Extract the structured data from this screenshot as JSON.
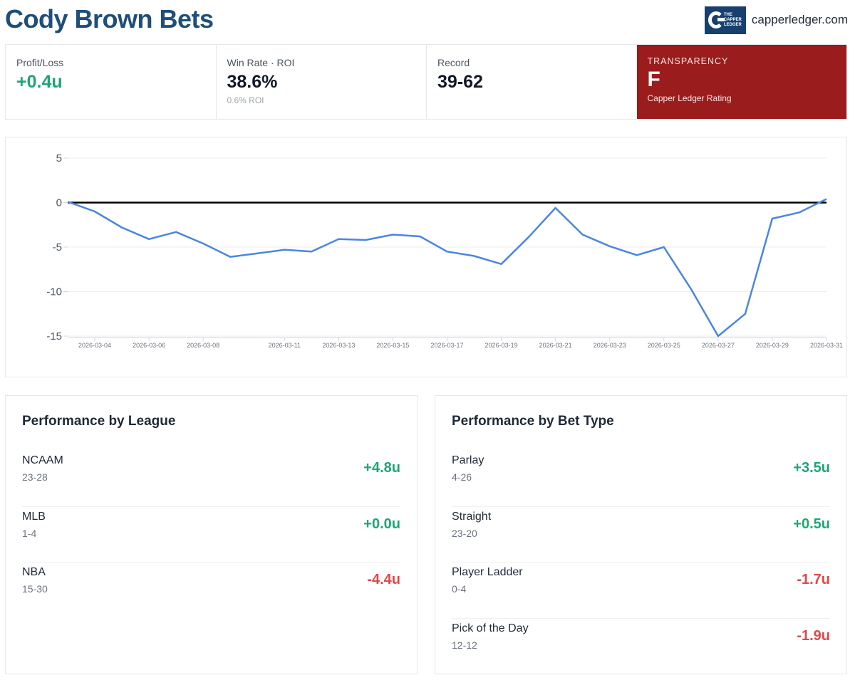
{
  "header": {
    "title": "Cody Brown Bets",
    "brand_logo_text": "THE CAPPER LEDGER",
    "brand_domain": "capperledger.com"
  },
  "stats": {
    "profit_loss": {
      "label": "Profit/Loss",
      "value": "+0.4u"
    },
    "win_rate": {
      "label": "Win Rate · ROI",
      "value": "38.6%",
      "sub": "0.6% ROI"
    },
    "record": {
      "label": "Record",
      "value": "39-62"
    },
    "transparency": {
      "label": "TRANSPARENCY",
      "grade": "F",
      "sub": "Capper Ledger Rating"
    }
  },
  "colors": {
    "title": "#1f4e79",
    "positive": "#1ea672",
    "negative": "#e04848",
    "transparency_bg": "#9b1c1c",
    "line": "#4a86e0",
    "zero_line": "#000000"
  },
  "chart_data": {
    "type": "line",
    "title": "",
    "xlabel": "",
    "ylabel": "",
    "ylim": [
      -15,
      5
    ],
    "yticks": [
      5,
      0,
      -5,
      -10,
      -15
    ],
    "grid": true,
    "x_tick_labels": [
      "2026-03-04",
      "2026-03-06",
      "2026-03-08",
      "2026-03-11",
      "2026-03-13",
      "2026-03-15",
      "2026-03-17",
      "2026-03-19",
      "2026-03-21",
      "2026-03-23",
      "2026-03-25",
      "2026-03-27",
      "2026-03-29",
      "2026-03-31"
    ],
    "reference_line": 0,
    "series": [
      {
        "points": [
          [
            "2026-03-03",
            0.1
          ],
          [
            "2026-03-04",
            -1.0
          ],
          [
            "2026-03-05",
            -2.8
          ],
          [
            "2026-03-06",
            -4.1
          ],
          [
            "2026-03-07",
            -3.3
          ],
          [
            "2026-03-08",
            -4.6
          ],
          [
            "2026-03-09",
            -6.1
          ],
          [
            "2026-03-11",
            -5.3
          ],
          [
            "2026-03-12",
            -5.5
          ],
          [
            "2026-03-13",
            -4.1
          ],
          [
            "2026-03-14",
            -4.2
          ],
          [
            "2026-03-15",
            -3.6
          ],
          [
            "2026-03-16",
            -3.8
          ],
          [
            "2026-03-17",
            -5.5
          ],
          [
            "2026-03-18",
            -6.0
          ],
          [
            "2026-03-19",
            -6.9
          ],
          [
            "2026-03-20",
            -3.9
          ],
          [
            "2026-03-21",
            -0.6
          ],
          [
            "2026-03-22",
            -3.6
          ],
          [
            "2026-03-23",
            -4.9
          ],
          [
            "2026-03-24",
            -5.9
          ],
          [
            "2026-03-25",
            -5.0
          ],
          [
            "2026-03-26",
            -9.7
          ],
          [
            "2026-03-27",
            -15.0
          ],
          [
            "2026-03-28",
            -12.5
          ],
          [
            "2026-03-29",
            -1.8
          ],
          [
            "2026-03-30",
            -1.1
          ],
          [
            "2026-03-31",
            0.4
          ]
        ]
      }
    ]
  },
  "perf_league": {
    "title": "Performance by League",
    "rows": [
      {
        "name": "NCAAM",
        "record": "23-28",
        "value": "+4.8u",
        "sign": "pos"
      },
      {
        "name": "MLB",
        "record": "1-4",
        "value": "+0.0u",
        "sign": "pos"
      },
      {
        "name": "NBA",
        "record": "15-30",
        "value": "-4.4u",
        "sign": "neg"
      }
    ]
  },
  "perf_bettype": {
    "title": "Performance by Bet Type",
    "rows": [
      {
        "name": "Parlay",
        "record": "4-26",
        "value": "+3.5u",
        "sign": "pos"
      },
      {
        "name": "Straight",
        "record": "23-20",
        "value": "+0.5u",
        "sign": "pos"
      },
      {
        "name": "Player Ladder",
        "record": "0-4",
        "value": "-1.7u",
        "sign": "neg"
      },
      {
        "name": "Pick of the Day",
        "record": "12-12",
        "value": "-1.9u",
        "sign": "neg"
      }
    ]
  }
}
